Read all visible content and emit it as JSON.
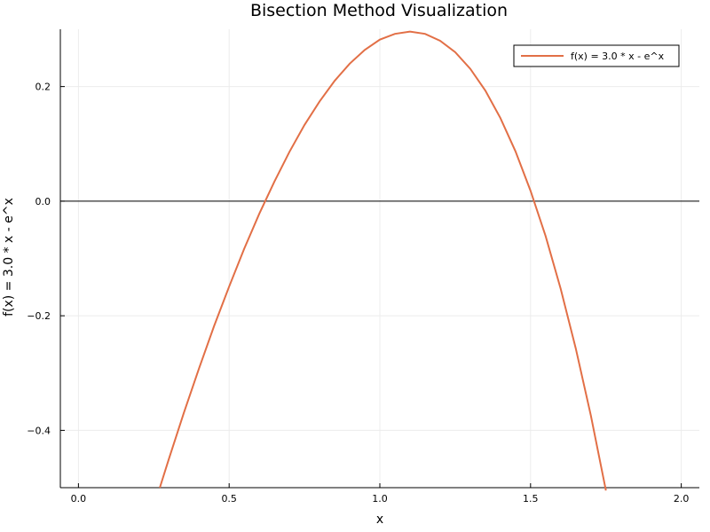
{
  "chart_data": {
    "type": "line",
    "title": "Bisection Method Visualization",
    "xlabel": "x",
    "ylabel": "f(x) = 3.0 * x - e^x",
    "xlim": [
      -0.06,
      2.06
    ],
    "ylim": [
      -0.5,
      0.3
    ],
    "xticks": [
      0.0,
      0.5,
      1.0,
      1.5,
      2.0
    ],
    "xtick_labels": [
      "0.0",
      "0.5",
      "1.0",
      "1.5",
      "2.0"
    ],
    "yticks": [
      -0.4,
      -0.2,
      0.0,
      0.2
    ],
    "ytick_labels": [
      "−0.4",
      "−0.2",
      "0.0",
      "0.2"
    ],
    "grid": true,
    "legend_position": "top-right",
    "reference_line": {
      "y": 0.0,
      "color": "#000000"
    },
    "series": [
      {
        "name": "f(x) = 3.0 * x - e^x",
        "color": "#e26f46",
        "x": [
          0.27,
          0.3,
          0.35,
          0.4,
          0.45,
          0.5,
          0.55,
          0.6,
          0.65,
          0.7,
          0.75,
          0.8,
          0.85,
          0.9,
          0.95,
          1.0,
          1.05,
          1.1,
          1.15,
          1.2,
          1.25,
          1.3,
          1.35,
          1.4,
          1.45,
          1.5,
          1.55,
          1.6,
          1.65,
          1.7,
          1.75
        ],
        "y": [
          -0.5,
          -0.45,
          -0.369,
          -0.292,
          -0.218,
          -0.149,
          -0.083,
          -0.022,
          0.034,
          0.086,
          0.133,
          0.174,
          0.21,
          0.24,
          0.264,
          0.282,
          0.292,
          0.296,
          0.292,
          0.28,
          0.26,
          0.231,
          0.193,
          0.145,
          0.087,
          0.018,
          -0.061,
          -0.153,
          -0.257,
          -0.374,
          -0.505
        ]
      }
    ]
  }
}
